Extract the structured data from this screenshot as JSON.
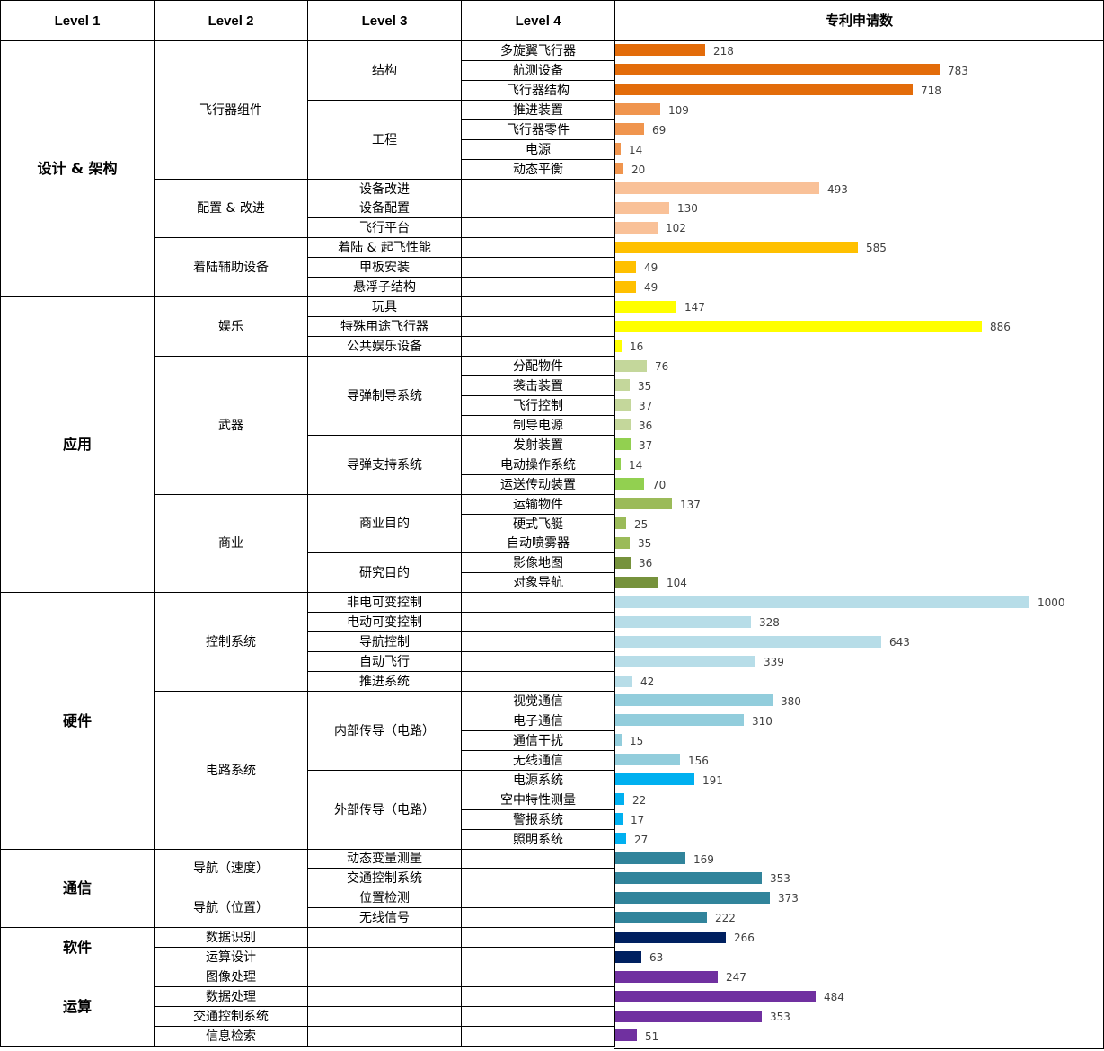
{
  "headers": {
    "level1": "Level 1",
    "level2": "Level 2",
    "level3": "Level 3",
    "level4": "Level 4",
    "chart": "专利申请数"
  },
  "colors": {
    "orange": "#E36C0A",
    "lightorange": "#F0954E",
    "peach": "#F9C198",
    "gold": "#FFC000",
    "yellow": "#FFFF00",
    "sage": "#C4D79B",
    "lime": "#92D050",
    "olivegreen": "#9BBB59",
    "darkolive": "#76923C",
    "paleblue": "#B7DDE8",
    "skyblue": "#92CDDC",
    "cyan": "#00B0F0",
    "teal": "#31849B",
    "navy": "#002060",
    "purple": "#7030A0"
  },
  "level1_groups": [
    {
      "label": "设计 & 架构",
      "start": 0,
      "span": 13
    },
    {
      "label": "应用",
      "start": 13,
      "span": 15
    },
    {
      "label": "硬件",
      "start": 28,
      "span": 13
    },
    {
      "label": "通信",
      "start": 41,
      "span": 4
    },
    {
      "label": "软件",
      "start": 45,
      "span": 2
    },
    {
      "label": "运算",
      "start": 47,
      "span": 4
    }
  ],
  "level2_groups": [
    {
      "label": "飞行器组件",
      "start": 0,
      "span": 7
    },
    {
      "label": "配置 & 改进",
      "start": 7,
      "span": 3
    },
    {
      "label": "着陆辅助设备",
      "start": 10,
      "span": 3
    },
    {
      "label": "娱乐",
      "start": 13,
      "span": 3
    },
    {
      "label": "武器",
      "start": 16,
      "span": 7
    },
    {
      "label": "商业",
      "start": 23,
      "span": 5
    },
    {
      "label": "控制系统",
      "start": 28,
      "span": 5
    },
    {
      "label": "电路系统",
      "start": 33,
      "span": 8
    },
    {
      "label": "导航（速度）",
      "start": 41,
      "span": 2
    },
    {
      "label": "导航（位置）",
      "start": 43,
      "span": 2
    },
    {
      "label": "数据识别",
      "start": 45,
      "span": 1
    },
    {
      "label": "运算设计",
      "start": 46,
      "span": 1
    },
    {
      "label": "图像处理",
      "start": 47,
      "span": 1
    },
    {
      "label": "数据处理",
      "start": 48,
      "span": 1
    },
    {
      "label": "交通控制系统",
      "start": 49,
      "span": 1
    },
    {
      "label": "信息检索",
      "start": 50,
      "span": 1
    }
  ],
  "level3_groups": [
    {
      "label": "结构",
      "start": 0,
      "span": 3
    },
    {
      "label": "工程",
      "start": 3,
      "span": 4
    },
    {
      "label": "设备改进",
      "start": 7,
      "span": 1
    },
    {
      "label": "设备配置",
      "start": 8,
      "span": 1
    },
    {
      "label": "飞行平台",
      "start": 9,
      "span": 1
    },
    {
      "label": "着陆 & 起飞性能",
      "start": 10,
      "span": 1
    },
    {
      "label": "甲板安装",
      "start": 11,
      "span": 1
    },
    {
      "label": "悬浮子结构",
      "start": 12,
      "span": 1
    },
    {
      "label": "玩具",
      "start": 13,
      "span": 1
    },
    {
      "label": "特殊用途飞行器",
      "start": 14,
      "span": 1
    },
    {
      "label": "公共娱乐设备",
      "start": 15,
      "span": 1
    },
    {
      "label": "导弹制导系统",
      "start": 16,
      "span": 4
    },
    {
      "label": "导弹支持系统",
      "start": 20,
      "span": 3
    },
    {
      "label": "商业目的",
      "start": 23,
      "span": 3
    },
    {
      "label": "研究目的",
      "start": 26,
      "span": 2
    },
    {
      "label": "非电可变控制",
      "start": 28,
      "span": 1
    },
    {
      "label": "电动可变控制",
      "start": 29,
      "span": 1
    },
    {
      "label": "导航控制",
      "start": 30,
      "span": 1
    },
    {
      "label": "自动飞行",
      "start": 31,
      "span": 1
    },
    {
      "label": "推进系统",
      "start": 32,
      "span": 1
    },
    {
      "label": "内部传导（电路）",
      "start": 33,
      "span": 4
    },
    {
      "label": "外部传导（电路）",
      "start": 37,
      "span": 4
    },
    {
      "label": "动态变量测量",
      "start": 41,
      "span": 1
    },
    {
      "label": "交通控制系统",
      "start": 42,
      "span": 1
    },
    {
      "label": "位置检测",
      "start": 43,
      "span": 1
    },
    {
      "label": "无线信号",
      "start": 44,
      "span": 1
    },
    {
      "label": "",
      "start": 45,
      "span": 1
    },
    {
      "label": "",
      "start": 46,
      "span": 1
    },
    {
      "label": "",
      "start": 47,
      "span": 1
    },
    {
      "label": "",
      "start": 48,
      "span": 1
    },
    {
      "label": "",
      "start": 49,
      "span": 1
    },
    {
      "label": "",
      "start": 50,
      "span": 1
    }
  ],
  "level4_rows": [
    "多旋翼飞行器",
    "航测设备",
    "飞行器结构",
    "推进装置",
    "飞行器零件",
    "电源",
    "动态平衡",
    "",
    "",
    "",
    "",
    "",
    "",
    "",
    "",
    "",
    "分配物件",
    "袭击装置",
    "飞行控制",
    "制导电源",
    "发射装置",
    "电动操作系统",
    "运送传动装置",
    "运输物件",
    "硬式飞艇",
    "自动喷雾器",
    "影像地图",
    "对象导航",
    "",
    "",
    "",
    "",
    "",
    "视觉通信",
    "电子通信",
    "通信干扰",
    "无线通信",
    "电源系统",
    "空中特性测量",
    "警报系统",
    "照明系统",
    "",
    "",
    "",
    "",
    "",
    "",
    "",
    "",
    "",
    ""
  ],
  "chart_data": {
    "type": "bar",
    "title": "专利申请数",
    "orientation": "horizontal",
    "xlim": [
      0,
      1000
    ],
    "grid": false,
    "values": [
      218,
      783,
      718,
      109,
      69,
      14,
      20,
      493,
      130,
      102,
      585,
      49,
      49,
      147,
      886,
      16,
      76,
      35,
      37,
      36,
      37,
      14,
      70,
      137,
      25,
      35,
      36,
      104,
      1000,
      328,
      643,
      339,
      42,
      380,
      310,
      15,
      156,
      191,
      22,
      17,
      27,
      169,
      353,
      373,
      222,
      266,
      63,
      247,
      484,
      353,
      51
    ],
    "bar_colors": [
      "orange",
      "orange",
      "orange",
      "lightorange",
      "lightorange",
      "lightorange",
      "lightorange",
      "peach",
      "peach",
      "peach",
      "gold",
      "gold",
      "gold",
      "yellow",
      "yellow",
      "yellow",
      "sage",
      "sage",
      "sage",
      "sage",
      "lime",
      "lime",
      "lime",
      "olivegreen",
      "olivegreen",
      "olivegreen",
      "darkolive",
      "darkolive",
      "paleblue",
      "paleblue",
      "paleblue",
      "paleblue",
      "paleblue",
      "skyblue",
      "skyblue",
      "skyblue",
      "skyblue",
      "cyan",
      "cyan",
      "cyan",
      "cyan",
      "teal",
      "teal",
      "teal",
      "teal",
      "navy",
      "navy",
      "purple",
      "purple",
      "purple",
      "purple"
    ]
  }
}
